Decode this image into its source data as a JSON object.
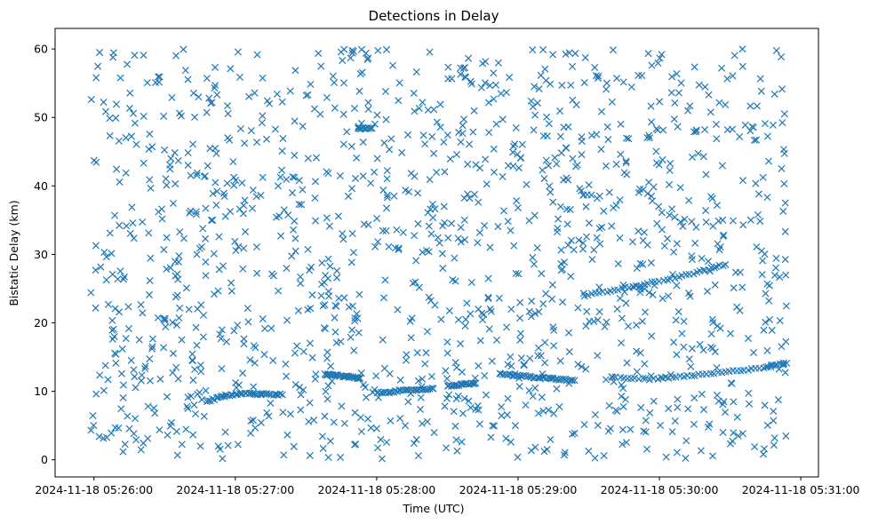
{
  "chart_data": {
    "type": "scatter",
    "title": "Detections in Delay",
    "xlabel": "Time (UTC)",
    "ylabel": "Bistatic Delay (km)",
    "marker": "x",
    "color": "#1f77b4",
    "x_unit": "seconds after 2024-11-18 05:26:00",
    "xlim": [
      -16.5,
      307.5
    ],
    "ylim": [
      -2.5,
      63
    ],
    "x_ticks": [
      {
        "value": 0,
        "label": "2024-11-18 05:26:00"
      },
      {
        "value": 60,
        "label": "2024-11-18 05:27:00"
      },
      {
        "value": 120,
        "label": "2024-11-18 05:28:00"
      },
      {
        "value": 180,
        "label": "2024-11-18 05:29:00"
      },
      {
        "value": 240,
        "label": "2024-11-18 05:30:00"
      },
      {
        "value": 300,
        "label": "2024-11-18 05:31:00"
      }
    ],
    "y_ticks": [
      {
        "value": 0,
        "label": "0"
      },
      {
        "value": 10,
        "label": "10"
      },
      {
        "value": 20,
        "label": "20"
      },
      {
        "value": 30,
        "label": "30"
      },
      {
        "value": 40,
        "label": "40"
      },
      {
        "value": 50,
        "label": "50"
      },
      {
        "value": 60,
        "label": "60"
      }
    ],
    "x_range_observed": [
      -2,
      294
    ],
    "scattered_detections_note": "approximately 1500 detections spread uniformly over delay 0-60 km",
    "tracks": [
      {
        "x": [
          98,
          103,
          108,
          113
        ],
        "y": [
          12.5,
          12.3,
          12.1,
          11.9
        ]
      },
      {
        "x": [
          48,
          56,
          64,
          72,
          80
        ],
        "y": [
          8.5,
          9.4,
          9.7,
          9.6,
          9.5
        ]
      },
      {
        "x": [
          120,
          128,
          136,
          144
        ],
        "y": [
          9.8,
          10.0,
          10.2,
          10.4
        ]
      },
      {
        "x": [
          172,
          180,
          188,
          196,
          204
        ],
        "y": [
          12.6,
          12.3,
          12.0,
          11.8,
          11.6
        ]
      },
      {
        "x": [
          220,
          236,
          252,
          268,
          284,
          294
        ],
        "y": [
          12.0,
          11.8,
          12.2,
          12.8,
          13.5,
          14.1
        ]
      },
      {
        "x": [
          208,
          224,
          240,
          256,
          268
        ],
        "y": [
          24.0,
          25.0,
          26.1,
          27.4,
          28.5
        ]
      },
      {
        "x": [
          112,
          118
        ],
        "y": [
          48.4,
          48.4
        ]
      },
      {
        "x": [
          150,
          156,
          162
        ],
        "y": [
          10.8,
          11.0,
          11.2
        ]
      }
    ]
  }
}
